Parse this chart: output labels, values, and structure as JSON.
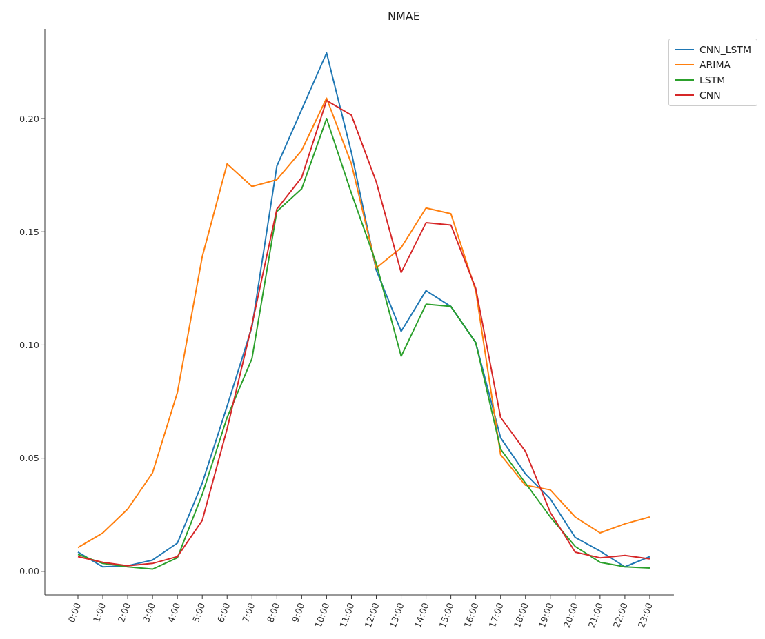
{
  "chart_data": {
    "type": "line",
    "title": "NMAE",
    "categories": [
      "0:00",
      "1:00",
      "2:00",
      "3:00",
      "4:00",
      "5:00",
      "6:00",
      "7:00",
      "8:00",
      "9:00",
      "10:00",
      "11:00",
      "12:00",
      "13:00",
      "14:00",
      "15:00",
      "16:00",
      "17:00",
      "18:00",
      "19:00",
      "20:00",
      "21:00",
      "22:00",
      "23:00"
    ],
    "series": [
      {
        "name": "CNN_LSTM",
        "color": "#1f77b4",
        "values": [
          0.0085,
          0.002,
          0.0025,
          0.005,
          0.0125,
          0.039,
          0.073,
          0.108,
          0.179,
          0.204,
          0.229,
          0.185,
          0.133,
          0.106,
          0.124,
          0.117,
          0.101,
          0.059,
          0.043,
          0.032,
          0.015,
          0.009,
          0.002,
          0.0065
        ]
      },
      {
        "name": "ARIMA",
        "color": "#ff7f0e",
        "values": [
          0.0105,
          0.017,
          0.0275,
          0.0435,
          0.079,
          0.139,
          0.18,
          0.17,
          0.173,
          0.186,
          0.209,
          0.18,
          0.134,
          0.143,
          0.1605,
          0.158,
          0.124,
          0.0515,
          0.038,
          0.036,
          0.024,
          0.017,
          0.021,
          0.024
        ]
      },
      {
        "name": "LSTM",
        "color": "#2ca02c",
        "values": [
          0.0075,
          0.0035,
          0.002,
          0.001,
          0.006,
          0.034,
          0.068,
          0.094,
          0.159,
          0.169,
          0.2,
          0.167,
          0.136,
          0.095,
          0.118,
          0.117,
          0.101,
          0.054,
          0.039,
          0.024,
          0.011,
          0.004,
          0.002,
          0.0015
        ]
      },
      {
        "name": "CNN",
        "color": "#d62728",
        "values": [
          0.0065,
          0.004,
          0.0025,
          0.0035,
          0.0065,
          0.0225,
          0.063,
          0.109,
          0.16,
          0.174,
          0.208,
          0.2015,
          0.172,
          0.132,
          0.154,
          0.153,
          0.125,
          0.068,
          0.053,
          0.026,
          0.0085,
          0.006,
          0.007,
          0.0055
        ]
      }
    ],
    "ylim": [
      -0.0104,
      0.2396
    ],
    "yticks": [
      {
        "value": 0,
        "label": "0.00"
      },
      {
        "value": 0.05,
        "label": "0.05"
      },
      {
        "value": 0.1,
        "label": "0.10"
      },
      {
        "value": 0.15,
        "label": "0.15"
      },
      {
        "value": 0.2,
        "label": "0.20"
      }
    ],
    "grid": false,
    "legend": "top right",
    "marker": "none",
    "line_style": "solid"
  }
}
